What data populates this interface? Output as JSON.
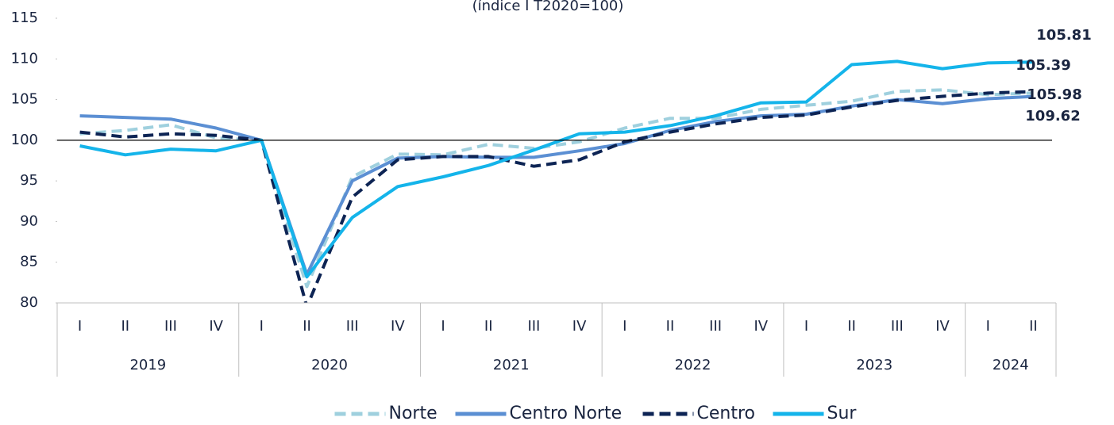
{
  "chart_data": {
    "type": "line",
    "title": "(índice I T2020=100)",
    "categories": [
      "I",
      "II",
      "III",
      "IV",
      "I",
      "II",
      "III",
      "IV",
      "I",
      "II",
      "III",
      "IV",
      "I",
      "II",
      "III",
      "IV",
      "I",
      "II",
      "III",
      "IV",
      "I",
      "II"
    ],
    "year_groups": [
      {
        "label": "2019",
        "count": 4
      },
      {
        "label": "2020",
        "count": 4
      },
      {
        "label": "2021",
        "count": 4
      },
      {
        "label": "2022",
        "count": 4
      },
      {
        "label": "2023",
        "count": 4
      },
      {
        "label": "2024",
        "count": 2
      }
    ],
    "ylim": [
      80,
      115
    ],
    "yticks": [
      80,
      85,
      90,
      95,
      100,
      105,
      110,
      115
    ],
    "reference_line": 100,
    "series": [
      {
        "name": "Norte",
        "color": "#9fd0de",
        "dashed": true,
        "label_color": "#3f93a6",
        "values": [
          100.8,
          101.2,
          101.9,
          100.3,
          100,
          82,
          95.5,
          98.3,
          98.2,
          99.5,
          99,
          99.8,
          101.5,
          102.7,
          102.7,
          103.8,
          104.3,
          104.8,
          106,
          106.2,
          105.6,
          105.81
        ]
      },
      {
        "name": "Centro Norte",
        "color": "#5b8fd3",
        "dashed": false,
        "label_color": "#5b8fd3",
        "values": [
          103,
          102.8,
          102.6,
          101.5,
          100,
          83.5,
          95,
          97.8,
          98,
          97.9,
          97.9,
          98.7,
          99.6,
          101.2,
          102.3,
          103,
          103.2,
          104.2,
          105,
          104.5,
          105.1,
          105.39
        ]
      },
      {
        "name": "Centro",
        "color": "#0d2454",
        "dashed": true,
        "label_color": "#0d2454",
        "values": [
          101,
          100.4,
          100.8,
          100.6,
          100,
          79.5,
          93,
          97.6,
          98,
          98,
          96.8,
          97.6,
          99.8,
          101,
          102,
          102.8,
          103.1,
          104.1,
          104.9,
          105.4,
          105.8,
          105.98
        ]
      },
      {
        "name": "Sur",
        "color": "#14b4ea",
        "dashed": false,
        "label_color": "#14b4ea",
        "values": [
          99.3,
          98.2,
          98.9,
          98.7,
          100,
          83.2,
          90.5,
          94.3,
          95.5,
          96.9,
          98.8,
          100.8,
          101,
          101.8,
          103,
          104.6,
          104.7,
          109.3,
          109.7,
          108.8,
          109.5,
          109.62
        ]
      }
    ]
  }
}
